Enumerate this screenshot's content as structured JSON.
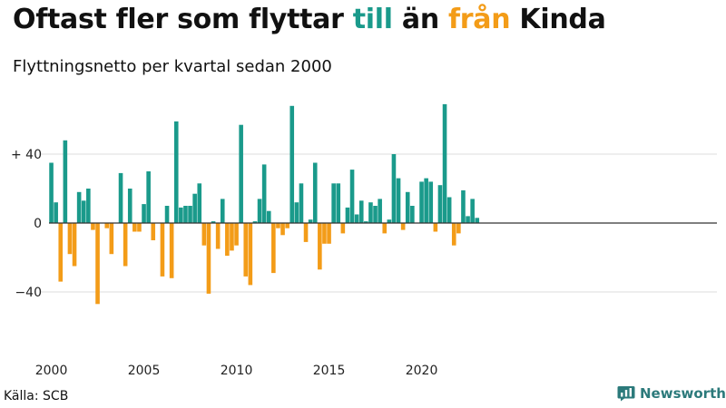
{
  "title": {
    "part1": "Oftast fler som flyttar ",
    "in_word": "till",
    "part2": " än ",
    "out_word": "från",
    "part3": " Kinda"
  },
  "subtitle": "Flyttningsnetto per kvartal sedan 2000",
  "source": "Källa: SCB",
  "brand": {
    "name": "Newsworthy",
    "icon": "newsworthy-chart-icon"
  },
  "colors": {
    "positive": "#1a9a8b",
    "negative": "#f39c18",
    "grid": "#dddddd",
    "zero_line": "#333333",
    "brand": "#2c7a7b"
  },
  "chart_data": {
    "type": "bar",
    "title": "",
    "xlabel": "",
    "ylabel": "",
    "x_start_year": 2000,
    "x_unit": "quarter",
    "ylim": [
      -60,
      70
    ],
    "y_ticks": [
      {
        "value": 40,
        "label": "+ 40"
      },
      {
        "value": 0,
        "label": "0"
      },
      {
        "value": -40,
        "label": "−40"
      }
    ],
    "x_ticks": [
      "2000",
      "2005",
      "2010",
      "2015",
      "2020"
    ],
    "grid": true,
    "series": [
      {
        "values": [
          35,
          12,
          -34,
          48,
          -18,
          -25,
          18,
          13,
          20,
          -4,
          -47,
          0,
          -3,
          -18,
          0,
          29,
          -25,
          20,
          -5,
          -5,
          11,
          30,
          -10,
          0,
          -31,
          10,
          -32,
          59,
          9,
          10,
          10,
          17,
          23,
          -13,
          -41,
          1,
          -15,
          14,
          -19,
          -16,
          -13,
          57,
          -31,
          -36,
          1,
          14,
          34,
          7,
          -29,
          -3,
          -7,
          -3,
          68,
          12,
          23,
          -11,
          2,
          35,
          -27,
          -12,
          -12,
          23,
          23,
          -6,
          9,
          31,
          5,
          13,
          1,
          12,
          10,
          14,
          -6,
          2,
          40,
          26,
          -4,
          18,
          10,
          0,
          24,
          26,
          24,
          -5,
          22,
          69,
          15,
          -13,
          -6,
          19,
          4,
          14,
          3
        ]
      }
    ]
  }
}
